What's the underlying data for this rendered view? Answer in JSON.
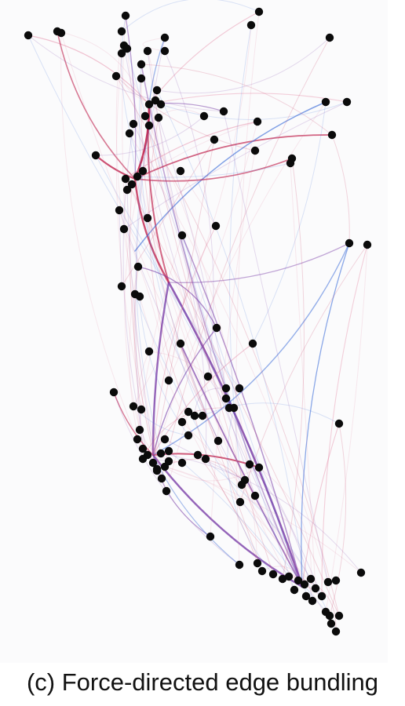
{
  "caption": "(c)  Force-directed edge bundling",
  "colors": {
    "background": "#fbfbfc",
    "node": "#0b0b0b",
    "edge_red": "#c0234e",
    "edge_pink": "#e58aa6",
    "edge_blue": "#3f6fd8",
    "edge_purple": "#7a3fa8"
  }
}
